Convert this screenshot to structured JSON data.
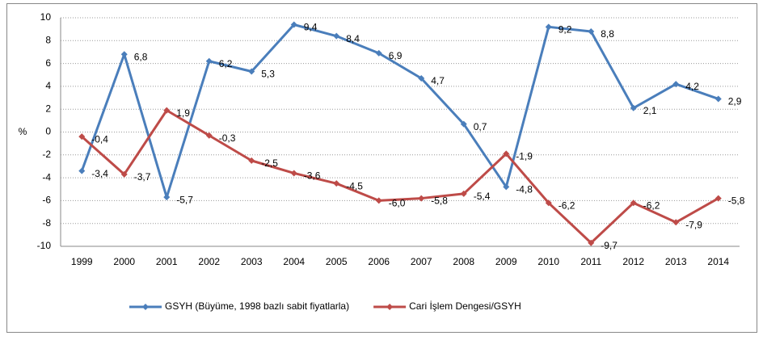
{
  "chart_data": {
    "type": "line",
    "ylabel": "%",
    "categories": [
      "1999",
      "2000",
      "2001",
      "2002",
      "2003",
      "2004",
      "2005",
      "2006",
      "2007",
      "2008",
      "2009",
      "2010",
      "2011",
      "2012",
      "2013",
      "2014"
    ],
    "series": [
      {
        "name": "GSYH (Büyüme, 1998 bazlı sabit fiyatlarla)",
        "color": "#4a7ebb",
        "values": [
          -3.4,
          6.8,
          -5.7,
          6.2,
          5.3,
          9.4,
          8.4,
          6.9,
          4.7,
          0.7,
          -4.8,
          9.2,
          8.8,
          2.1,
          4.2,
          2.9
        ],
        "value_labels": [
          "-3,4",
          "6,8",
          "-5,7",
          "6,2",
          "5,3",
          "9,4",
          "8,4",
          "6,9",
          "4,7",
          "0,7",
          "-4,8",
          "9,2",
          "8,8",
          "2,1",
          "4,2",
          "2,9"
        ]
      },
      {
        "name": "Cari İşlem Dengesi/GSYH",
        "color": "#be4b48",
        "values": [
          -0.4,
          -3.7,
          1.9,
          -0.3,
          -2.5,
          -3.6,
          -4.5,
          -6.0,
          -5.8,
          -5.4,
          -1.9,
          -6.2,
          -9.7,
          -6.2,
          -7.9,
          -5.8
        ],
        "value_labels": [
          "-0,4",
          "-3,7",
          "1,9",
          "-0,3",
          "-2,5",
          "-3,6",
          "-4,5",
          "-6,0",
          "-5,8",
          "-5,4",
          "-1,9",
          "-6,2",
          "-9,7",
          "-6,2",
          "-7,9",
          "-5,8"
        ]
      }
    ],
    "ylim": [
      -10,
      10
    ],
    "yticks": [
      -10,
      -8,
      -6,
      -4,
      -2,
      0,
      2,
      4,
      6,
      8,
      10
    ],
    "grid": true,
    "legend": "bottom"
  }
}
